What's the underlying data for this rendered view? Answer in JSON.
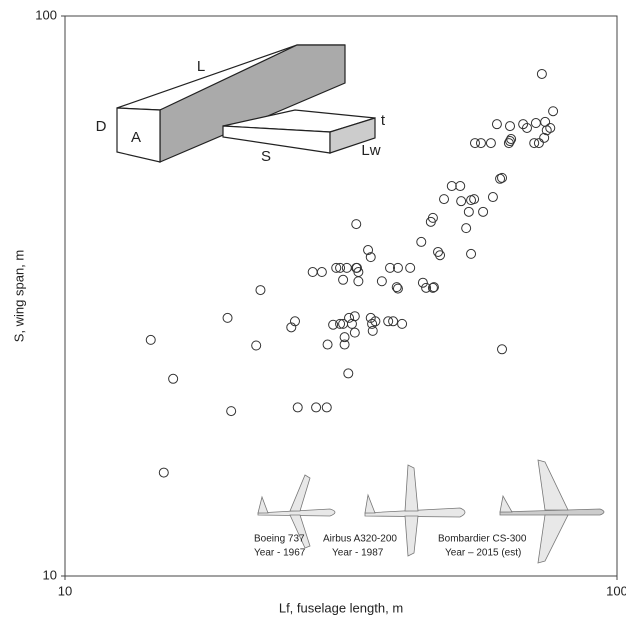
{
  "chart_data": {
    "type": "scatter",
    "x_label": "Lf, fuselage length, m",
    "y_label": "S, wing span, m",
    "xscale": "log",
    "yscale": "log",
    "xlim": [
      10,
      100
    ],
    "ylim": [
      10,
      100
    ],
    "xticks": [
      10,
      100
    ],
    "yticks": [
      10,
      100
    ],
    "color": "#333333",
    "x": [
      14.3,
      15.7,
      15.1,
      19.7,
      20.0,
      22.2,
      22.6,
      25.7,
      26.1,
      26.4,
      28.5,
      29.8,
      28.1,
      29.2,
      29.9,
      30.6,
      31.0,
      31.5,
      31.5,
      31.9,
      32.1,
      32.4,
      31.9,
      32.7,
      32.1,
      33.1,
      33.7,
      33.5,
      33.5,
      33.7,
      33.8,
      34.0,
      34.0,
      32.6,
      35.4,
      35.8,
      35.8,
      36.0,
      36.1,
      36.5,
      37.5,
      38.5,
      38.8,
      39.3,
      40.1,
      39.9,
      40.1,
      40.8,
      42.2,
      44.2,
      44.5,
      45.1,
      46.0,
      46.4,
      46.4,
      46.6,
      47.4,
      47.8,
      48.6,
      50.2,
      52.0,
      52.2,
      53.3,
      53.9,
      54.4,
      55.1,
      54.4,
      55.3,
      56.7,
      57.2,
      59.1,
      59.6,
      61.4,
      61.9,
      61.9,
      60.6,
      63.7,
      64.0,
      64.3,
      64.0,
      67.6,
      68.7,
      70.8,
      71.3,
      74.1,
      73.1,
      74.6,
      73.8,
      75.7,
      76.6,
      72.2
    ],
    "values": [
      26.4,
      22.5,
      15.3,
      28.9,
      19.7,
      25.8,
      32.4,
      27.8,
      28.5,
      20.0,
      20.0,
      20.0,
      34.9,
      34.9,
      25.9,
      28.1,
      35.5,
      28.2,
      35.5,
      33.8,
      25.9,
      35.5,
      28.2,
      28.9,
      26.7,
      28.2,
      35.5,
      29.1,
      27.2,
      42.5,
      35.5,
      34.9,
      33.6,
      23.0,
      38.2,
      37.1,
      28.9,
      28.2,
      27.4,
      28.5,
      33.6,
      28.5,
      35.5,
      28.5,
      35.5,
      32.8,
      32.6,
      28.2,
      35.5,
      39.5,
      33.4,
      32.7,
      42.9,
      43.6,
      32.7,
      32.8,
      37.9,
      37.4,
      47.1,
      49.7,
      49.7,
      46.7,
      41.8,
      44.7,
      46.9,
      47.1,
      37.6,
      59.3,
      59.3,
      44.7,
      59.3,
      47.5,
      51.2,
      51.4,
      25.4,
      64.1,
      59.3,
      63.6,
      60.3,
      59.8,
      64.1,
      63.1,
      59.3,
      64.4,
      64.7,
      78.8,
      62.5,
      60.6,
      63.1,
      67.6,
      59.3
    ],
    "annotations": [
      "L",
      "D",
      "A",
      "t",
      "S",
      "Lw",
      "Boeing 737",
      "Year - 1967",
      "Airbus A320-200",
      "Year - 1987",
      "Bombardier CS-300",
      "Year – 2015 (est)"
    ]
  }
}
